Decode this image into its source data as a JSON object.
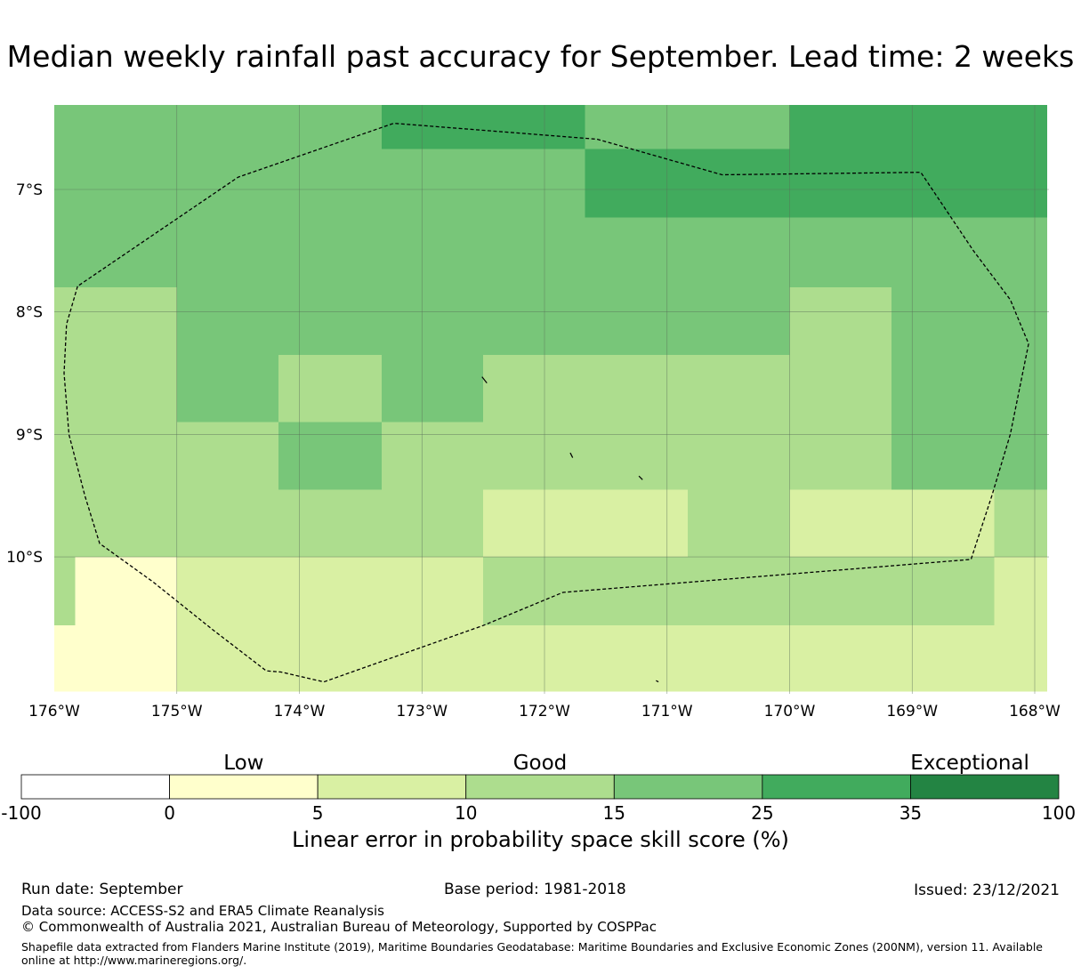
{
  "title": "Median weekly rainfall past accuracy for September. Lead time: 2 weeks",
  "chart_data": {
    "type": "heatmap",
    "title": "Median weekly rainfall past accuracy for September. Lead time: 2 weeks",
    "xlim": [
      -176,
      -167.9
    ],
    "ylim": [
      -11.1,
      -6.3
    ],
    "x_ticks": [
      -176,
      -175,
      -174,
      -173,
      -172,
      -171,
      -170,
      -169,
      -168
    ],
    "x_tick_labels": [
      "176°W",
      "175°W",
      "174°W",
      "173°W",
      "172°W",
      "171°W",
      "170°W",
      "169°W",
      "168°W"
    ],
    "y_ticks": [
      -7,
      -8,
      -9,
      -10
    ],
    "y_tick_labels": [
      "7°S",
      "8°S",
      "9°S",
      "10°S"
    ],
    "grid": true,
    "cells": [
      {
        "lon": [
          -176,
          -175
        ],
        "lat": [
          -7.8,
          -6.3
        ],
        "value": 20
      },
      {
        "lon": [
          -175,
          -173.33
        ],
        "lat": [
          -8.35,
          -6.3
        ],
        "value": 20
      },
      {
        "lon": [
          -173.33,
          -171.67
        ],
        "lat": [
          -6.67,
          -6.3
        ],
        "value": 30
      },
      {
        "lon": [
          -173.33,
          -171.67
        ],
        "lat": [
          -8.35,
          -6.67
        ],
        "value": 20
      },
      {
        "lon": [
          -171.67,
          -170
        ],
        "lat": [
          -6.67,
          -6.3
        ],
        "value": 20
      },
      {
        "lon": [
          -171.67,
          -170
        ],
        "lat": [
          -7.23,
          -6.67
        ],
        "value": 30
      },
      {
        "lon": [
          -171.67,
          -170
        ],
        "lat": [
          -8.35,
          -7.23
        ],
        "value": 20
      },
      {
        "lon": [
          -170,
          -167.9
        ],
        "lat": [
          -7.23,
          -6.3
        ],
        "value": 30
      },
      {
        "lon": [
          -170,
          -167.9
        ],
        "lat": [
          -7.8,
          -7.23
        ],
        "value": 20
      },
      {
        "lon": [
          -176,
          -175
        ],
        "lat": [
          -10,
          -7.8
        ],
        "value": 12
      },
      {
        "lon": [
          -176,
          -175.83
        ],
        "lat": [
          -10.56,
          -10
        ],
        "value": 12
      },
      {
        "lon": [
          -175.83,
          -175
        ],
        "lat": [
          -11.1,
          -10
        ],
        "value": 3
      },
      {
        "lon": [
          -176,
          -175.83
        ],
        "lat": [
          -11.1,
          -10.56
        ],
        "value": 3
      },
      {
        "lon": [
          -175,
          -174.17
        ],
        "lat": [
          -8.9,
          -8.35
        ],
        "value": 20
      },
      {
        "lon": [
          -174.17,
          -173.33
        ],
        "lat": [
          -8.9,
          -8.35
        ],
        "value": 12
      },
      {
        "lon": [
          -173.33,
          -172.5
        ],
        "lat": [
          -8.9,
          -8.35
        ],
        "value": 20
      },
      {
        "lon": [
          -175,
          -172.5
        ],
        "lat": [
          -10,
          -8.9
        ],
        "value": 12
      },
      {
        "lon": [
          -174.17,
          -173.33
        ],
        "lat": [
          -9.45,
          -8.9
        ],
        "value": 20
      },
      {
        "lon": [
          -172.5,
          -170
        ],
        "lat": [
          -9.45,
          -8.35
        ],
        "value": 12
      },
      {
        "lon": [
          -172.5,
          -170.83
        ],
        "lat": [
          -10,
          -9.45
        ],
        "value": 7
      },
      {
        "lon": [
          -170.83,
          -170
        ],
        "lat": [
          -10,
          -9.45
        ],
        "value": 12
      },
      {
        "lon": [
          -170,
          -169.17
        ],
        "lat": [
          -9.45,
          -7.8
        ],
        "value": 12
      },
      {
        "lon": [
          -169.17,
          -167.9
        ],
        "lat": [
          -9.45,
          -7.8
        ],
        "value": 20
      },
      {
        "lon": [
          -170,
          -168.33
        ],
        "lat": [
          -10,
          -9.45
        ],
        "value": 7
      },
      {
        "lon": [
          -168.33,
          -167.9
        ],
        "lat": [
          -10,
          -9.45
        ],
        "value": 12
      },
      {
        "lon": [
          -175,
          -172.5
        ],
        "lat": [
          -11.1,
          -10
        ],
        "value": 7
      },
      {
        "lon": [
          -172.5,
          -168.33
        ],
        "lat": [
          -10.56,
          -10
        ],
        "value": 12
      },
      {
        "lon": [
          -168.33,
          -167.9
        ],
        "lat": [
          -10.56,
          -10
        ],
        "value": 7
      },
      {
        "lon": [
          -172.5,
          -167.9
        ],
        "lat": [
          -11.1,
          -10.56
        ],
        "value": 7
      }
    ],
    "eez_boundary": [
      [
        -175.81,
        -7.79
      ],
      [
        -175.9,
        -8.1
      ],
      [
        -175.92,
        -8.5
      ],
      [
        -175.88,
        -9.0
      ],
      [
        -175.75,
        -9.5
      ],
      [
        -175.63,
        -9.89
      ],
      [
        -175.2,
        -10.2
      ],
      [
        -174.7,
        -10.6
      ],
      [
        -174.27,
        -10.93
      ],
      [
        -174.15,
        -10.94
      ],
      [
        -173.8,
        -11.02
      ],
      [
        -172.5,
        -10.56
      ],
      [
        -171.85,
        -10.29
      ],
      [
        -168.52,
        -10.02
      ],
      [
        -168.35,
        -9.5
      ],
      [
        -168.2,
        -9.0
      ],
      [
        -168.05,
        -8.26
      ],
      [
        -168.2,
        -7.9
      ],
      [
        -168.5,
        -7.5
      ],
      [
        -168.93,
        -6.86
      ],
      [
        -170.55,
        -6.88
      ],
      [
        -171.57,
        -6.59
      ],
      [
        -173.23,
        -6.46
      ],
      [
        -174.5,
        -6.9
      ],
      [
        -175.81,
        -7.79
      ]
    ],
    "islands": [
      {
        "lon": [
          -172.51,
          -172.47
        ],
        "lat": [
          -8.53,
          -8.58
        ]
      },
      {
        "lon": [
          -171.79,
          -171.77
        ],
        "lat": [
          -9.15,
          -9.19
        ]
      },
      {
        "lon": [
          -171.23,
          -171.2
        ],
        "lat": [
          -9.34,
          -9.37
        ]
      },
      {
        "lon": [
          -171.09,
          -171.07
        ],
        "lat": [
          -11.01,
          -11.02
        ]
      }
    ],
    "colorbar": {
      "label": "Linear error in probability space skill score (%)",
      "bounds": [
        -100,
        0,
        5,
        10,
        15,
        25,
        35,
        100
      ],
      "tick_labels": [
        "-100",
        "0",
        "5",
        "10",
        "15",
        "25",
        "35",
        "100"
      ],
      "colors": [
        "#ffffff",
        "#ffffcc",
        "#d9f0a3",
        "#addd8e",
        "#78c679",
        "#41ab5d",
        "#238443"
      ],
      "categories": [
        "Low",
        "Good",
        "Exceptional"
      ]
    }
  },
  "footer": {
    "run_date": "Run date: September",
    "base_period": "Base period: 1981-2018",
    "issued": "Issued: 23/12/2021",
    "data_source": "Data source: ACCESS-S2 and ERA5 Climate Reanalysis",
    "copyright": "© Commonwealth of Australia 2021, Australian Bureau of Meteorology, Supported by COSPPac",
    "shapefile": "Shapefile data extracted from Flanders Marine Institute (2019), Maritime Boundaries Geodatabase: Maritime Boundaries and Exclusive Economic Zones (200NM), version 11. Available online at http://www.marineregions.org/."
  }
}
